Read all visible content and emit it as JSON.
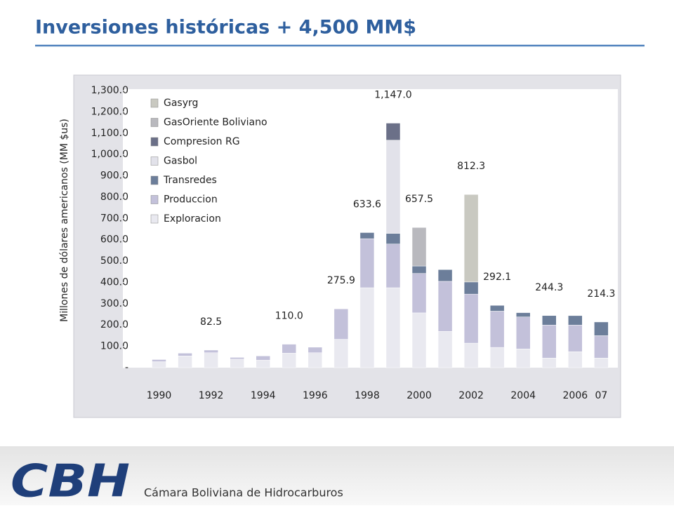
{
  "chart_data": {
    "type": "stacked_bar",
    "title": "Inversiones históricas + 4,500 MM$",
    "y_label": "Millones de dólares americanos (MM $us)",
    "categories": [
      "1990",
      null,
      "1992",
      null,
      "1994",
      null,
      "1996",
      null,
      "1998",
      null,
      "2000",
      null,
      "2002",
      null,
      "2004",
      null,
      "2006",
      "07"
    ],
    "series": [
      {
        "name": "Exploracion",
        "color": "#e9e9f0",
        "values": [
          28,
          55,
          70,
          40,
          35,
          68,
          70,
          133,
          375,
          375,
          257,
          170,
          115,
          95,
          88,
          45,
          75,
          45
        ]
      },
      {
        "name": "Produccion",
        "color": "#c3c1da",
        "values": [
          10,
          13,
          12.5,
          8,
          20,
          42,
          26,
          142.9,
          230,
          205,
          185,
          235,
          230,
          170,
          150,
          155,
          125,
          105
        ]
      },
      {
        "name": "Transredes",
        "color": "#6c7e9a",
        "values": [
          null,
          null,
          null,
          null,
          null,
          null,
          null,
          null,
          28.6,
          50,
          35,
          55,
          57,
          27.1,
          20,
          44.3,
          44,
          64.3
        ]
      },
      {
        "name": "Gasbol",
        "color": "#e2e2ea",
        "values": [
          null,
          null,
          null,
          null,
          null,
          null,
          null,
          null,
          null,
          437,
          null,
          null,
          null,
          null,
          null,
          null,
          null,
          null
        ]
      },
      {
        "name": "Compresion RG",
        "color": "#6b7088",
        "values": [
          null,
          null,
          null,
          null,
          null,
          null,
          null,
          null,
          null,
          80,
          null,
          null,
          null,
          null,
          null,
          null,
          null,
          null
        ]
      },
      {
        "name": "GasOriente  Boliviano",
        "color": "#b9b9be",
        "values": [
          null,
          null,
          null,
          null,
          null,
          null,
          null,
          null,
          null,
          null,
          180.5,
          null,
          null,
          null,
          null,
          null,
          null,
          null
        ]
      },
      {
        "name": "Gasyrg",
        "color": "#c9c9c1",
        "values": [
          null,
          null,
          null,
          null,
          null,
          null,
          null,
          null,
          null,
          null,
          null,
          null,
          410.3,
          null,
          null,
          null,
          null,
          null
        ]
      }
    ],
    "totals": [
      null,
      null,
      82.5,
      null,
      null,
      110.0,
      null,
      275.9,
      633.6,
      1147.0,
      657.5,
      null,
      812.3,
      292.1,
      null,
      244.3,
      null,
      214.3
    ],
    "total_labels": [
      null,
      null,
      "82.5",
      null,
      null,
      "110.0",
      null,
      "275.9",
      "633.6",
      "1,147.0",
      "657.5",
      null,
      "812.3",
      "292.1",
      null,
      "244.3",
      null,
      "214.3"
    ],
    "ylim": [
      0,
      1300
    ],
    "yticks": [
      {
        "value": 0,
        "label": "-"
      },
      {
        "value": 100,
        "label": "100.0"
      },
      {
        "value": 200,
        "label": "200.0"
      },
      {
        "value": 300,
        "label": "300.0"
      },
      {
        "value": 400,
        "label": "400.0"
      },
      {
        "value": 500,
        "label": "500.0"
      },
      {
        "value": 600,
        "label": "600.0"
      },
      {
        "value": 700,
        "label": "700.0"
      },
      {
        "value": 800,
        "label": "800.0"
      },
      {
        "value": 900,
        "label": "900.0"
      },
      {
        "value": 1000,
        "label": "1,000.0"
      },
      {
        "value": 1100,
        "label": "1,100.0"
      },
      {
        "value": 1200,
        "label": "1,200.0"
      },
      {
        "value": 1300,
        "label": "1,300.0"
      }
    ],
    "legend": "top-left"
  },
  "footer": {
    "organization": "Cámara Boliviana de Hidrocarburos",
    "logo": "CBH"
  }
}
